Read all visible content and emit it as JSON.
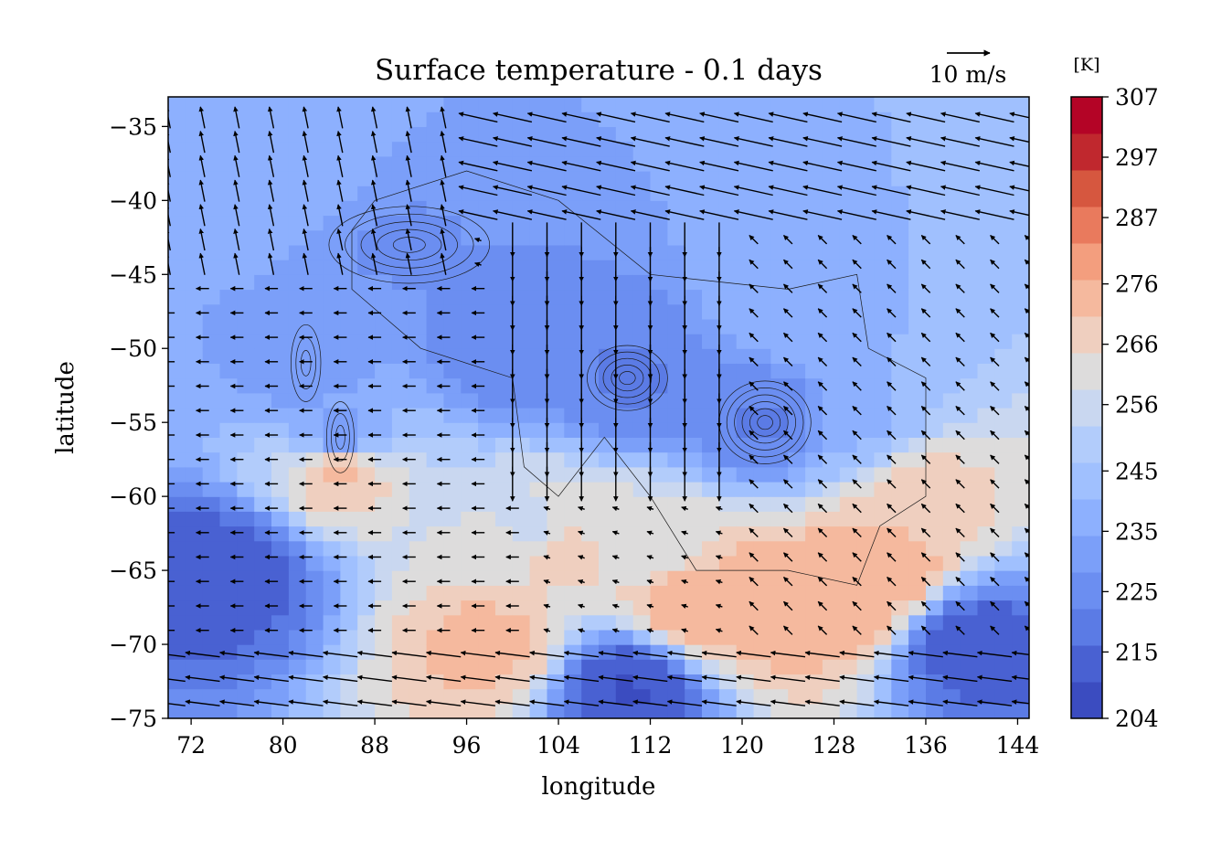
{
  "chart_data": {
    "type": "heatmap",
    "title": "Surface temperature - 0.1 days",
    "xlabel": "longitude",
    "ylabel": "latitude",
    "xlim": [
      70,
      145
    ],
    "ylim": [
      -75,
      -33
    ],
    "x_ticks": [
      72,
      80,
      88,
      96,
      104,
      112,
      120,
      128,
      136,
      144
    ],
    "y_ticks": [
      -35,
      -40,
      -45,
      -50,
      -55,
      -60,
      -65,
      -70,
      -75
    ],
    "x_tick_labels": [
      "72",
      "80",
      "88",
      "96",
      "104",
      "112",
      "120",
      "128",
      "136",
      "144"
    ],
    "y_tick_labels": [
      "−35",
      "−40",
      "−45",
      "−50",
      "−55",
      "−60",
      "−65",
      "−70",
      "−75"
    ],
    "grid": false,
    "colorbar": {
      "unit_label": "[K]",
      "range": [
        204,
        307
      ],
      "tick_values": [
        307,
        297,
        287,
        276,
        266,
        256,
        245,
        235,
        225,
        215,
        204
      ],
      "tick_labels": [
        "307",
        "297",
        "287",
        "276",
        "266",
        "256",
        "245",
        "235",
        "225",
        "215",
        "204"
      ],
      "levels": 15,
      "colors": [
        "#3b4cc0",
        "#4961d2",
        "#5b7be5",
        "#6b8ef1",
        "#7b9ff9",
        "#8db0fe",
        "#a0c0fe",
        "#b2ccfb",
        "#c9d7f0",
        "#dddcdc",
        "#efcfbf",
        "#f5b99e",
        "#f39e7e",
        "#e97a5d",
        "#d6573f",
        "#c0282e",
        "#b40426"
      ]
    },
    "quiver_key": {
      "label": "10 m/s",
      "speed": 10,
      "placement": "top-right"
    },
    "temperature_anchors": [
      {
        "lon": 90,
        "lat": -43,
        "t": 228
      },
      {
        "lon": 100,
        "lat": -50,
        "t": 224
      },
      {
        "lon": 110,
        "lat": -52,
        "t": 222
      },
      {
        "lon": 122,
        "lat": -55,
        "t": 222
      },
      {
        "lon": 82,
        "lat": -51,
        "t": 232
      },
      {
        "lon": 85,
        "lat": -56,
        "t": 232
      },
      {
        "lon": 85,
        "lat": -58,
        "t": 272
      },
      {
        "lon": 102,
        "lat": -62,
        "t": 258
      },
      {
        "lon": 104,
        "lat": -63.5,
        "t": 266
      },
      {
        "lon": 113,
        "lat": -63.5,
        "t": 262
      },
      {
        "lon": 116,
        "lat": -67,
        "t": 276
      },
      {
        "lon": 122,
        "lat": -67,
        "t": 276
      },
      {
        "lon": 128,
        "lat": -67,
        "t": 276
      },
      {
        "lon": 132,
        "lat": -65,
        "t": 276
      },
      {
        "lon": 135,
        "lat": -60,
        "t": 268
      },
      {
        "lon": 98,
        "lat": -70,
        "t": 272
      },
      {
        "lon": 80,
        "lat": -38,
        "t": 240
      },
      {
        "lon": 125,
        "lat": -47,
        "t": 240
      },
      {
        "lon": 130,
        "lat": -55,
        "t": 240
      },
      {
        "lon": 75,
        "lat": -65,
        "t": 212
      },
      {
        "lon": 110,
        "lat": -73,
        "t": 210
      },
      {
        "lon": 140,
        "lat": -70,
        "t": 212
      }
    ],
    "wind_regions": [
      {
        "lon_range": [
          70,
          95
        ],
        "lat_range": [
          -45,
          -33
        ],
        "u": -1,
        "v": 5
      },
      {
        "lon_range": [
          95,
          145
        ],
        "lat_range": [
          -42,
          -33
        ],
        "u": -9,
        "v": 2
      },
      {
        "lon_range": [
          100,
          120
        ],
        "lat_range": [
          -60,
          -42
        ],
        "u": 0,
        "v": -8
      },
      {
        "lon_range": [
          70,
          100
        ],
        "lat_range": [
          -70,
          -45
        ],
        "u": -3,
        "v": 0
      },
      {
        "lon_range": [
          70,
          145
        ],
        "lat_range": [
          -75,
          -70
        ],
        "u": -8,
        "v": 1
      },
      {
        "lon_range": [
          120,
          145
        ],
        "lat_range": [
          -70,
          -42
        ],
        "u": -2,
        "v": 2
      }
    ]
  }
}
